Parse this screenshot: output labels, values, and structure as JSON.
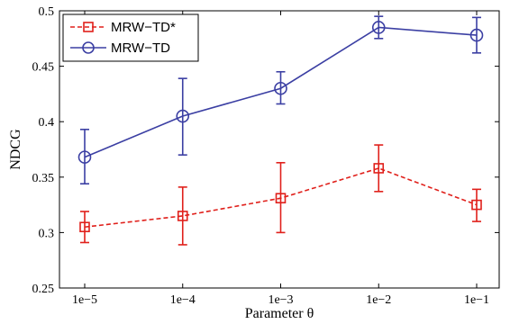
{
  "chart_data": {
    "type": "line",
    "categories": [
      "1e−5",
      "1e−4",
      "1e−3",
      "1e−2",
      "1e−1"
    ],
    "xlabel": "Parameter θ",
    "ylabel": "NDCG",
    "ylim": [
      0.25,
      0.5
    ],
    "yticks": [
      "0.25",
      "0.3",
      "0.35",
      "0.4",
      "0.45",
      "0.5"
    ],
    "grid": false,
    "legend_position": "top-left",
    "series": [
      {
        "name": "MRW−TD*",
        "color": "#e0201b",
        "line_style": "dashed",
        "marker": "square",
        "values": [
          0.305,
          0.315,
          0.331,
          0.358,
          0.325
        ],
        "err_low": [
          0.291,
          0.289,
          0.3,
          0.337,
          0.31
        ],
        "err_high": [
          0.319,
          0.341,
          0.363,
          0.379,
          0.339
        ]
      },
      {
        "name": "MRW−TD",
        "color": "#3b3fa3",
        "line_style": "solid",
        "marker": "circle",
        "values": [
          0.368,
          0.405,
          0.43,
          0.485,
          0.478
        ],
        "err_low": [
          0.344,
          0.37,
          0.416,
          0.475,
          0.462
        ],
        "err_high": [
          0.393,
          0.439,
          0.445,
          0.495,
          0.494
        ]
      }
    ]
  }
}
